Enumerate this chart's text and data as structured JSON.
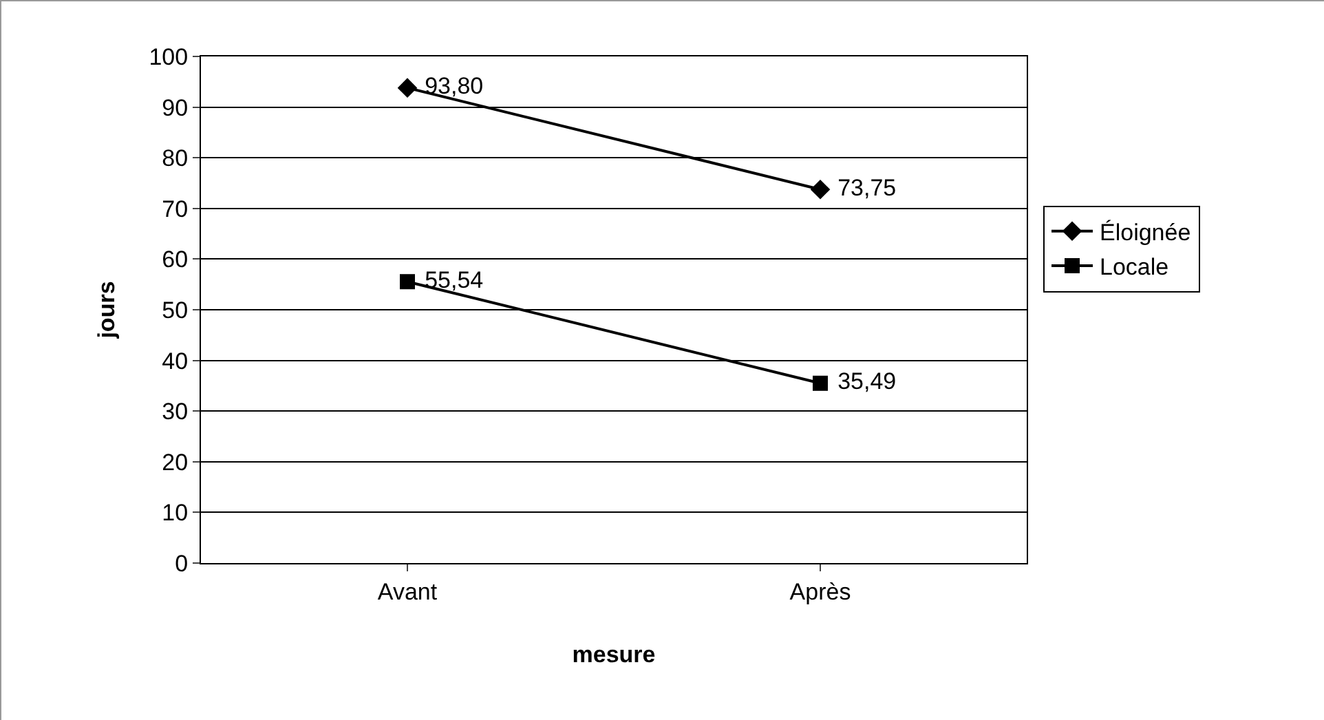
{
  "chart_data": {
    "type": "line",
    "xlabel": "mesure",
    "ylabel": "jours",
    "categories": [
      "Avant",
      "Après"
    ],
    "series": [
      {
        "name": "Éloignée",
        "color": "#000000",
        "marker": "diamond",
        "values": [
          93.8,
          73.75
        ],
        "value_labels": [
          "93,80",
          "73,75"
        ]
      },
      {
        "name": "Locale",
        "color": "#000000",
        "marker": "square",
        "values": [
          55.54,
          35.49
        ],
        "value_labels": [
          "55,54",
          "35,49"
        ]
      }
    ],
    "ylim": [
      0,
      100
    ],
    "yticks": [
      0,
      10,
      20,
      30,
      40,
      50,
      60,
      70,
      80,
      90,
      100
    ],
    "grid": "y",
    "legend": "right",
    "line_style": "solid"
  }
}
